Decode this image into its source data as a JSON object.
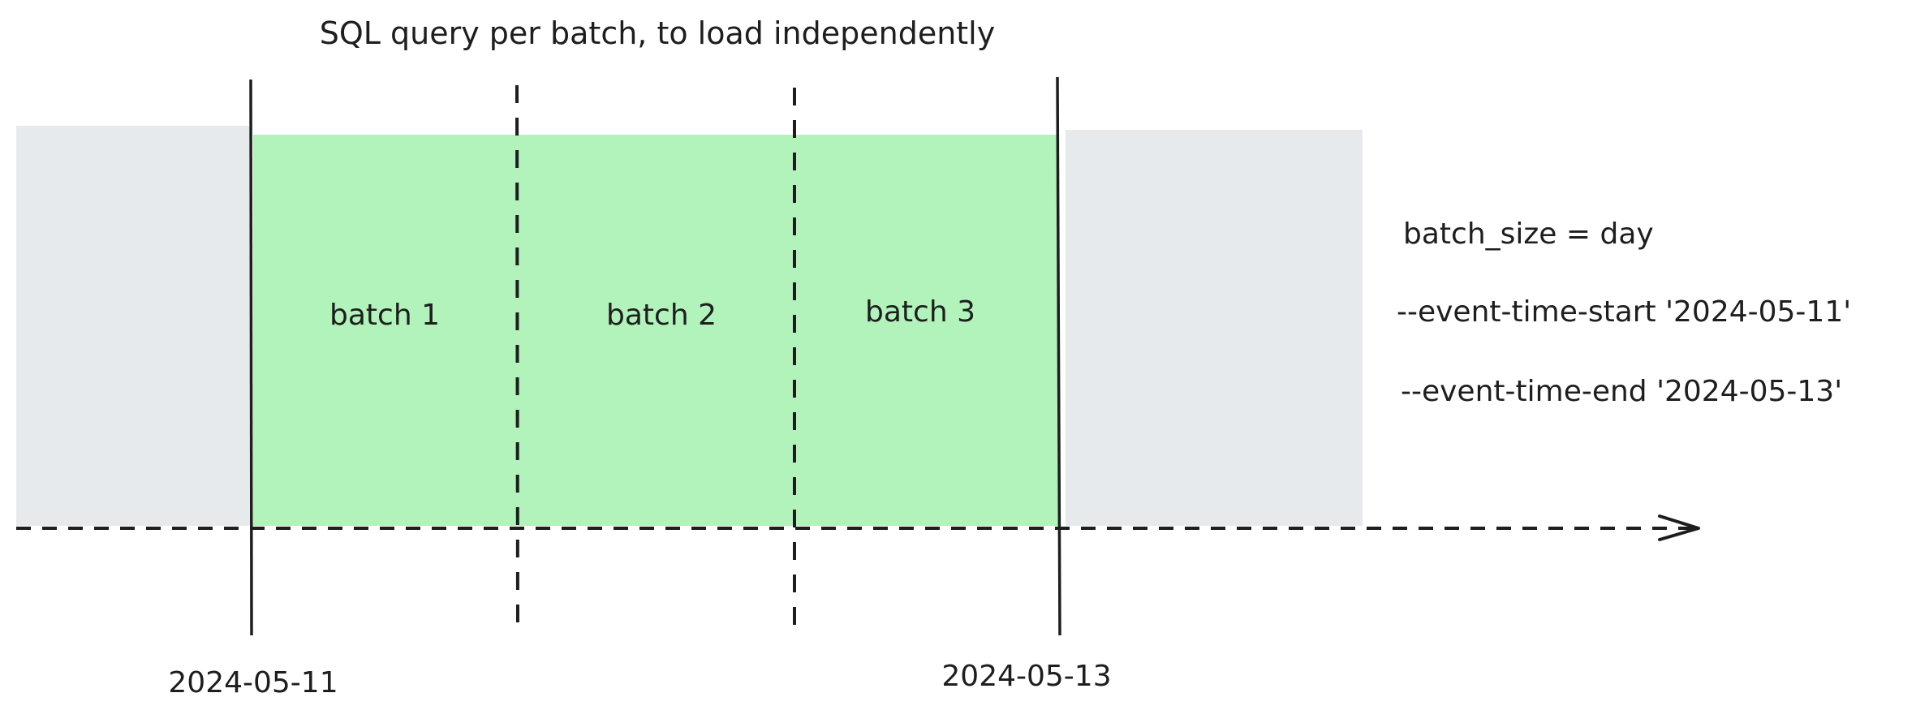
{
  "title": "SQL query per batch, to load independently",
  "batches": [
    {
      "label": "batch 1"
    },
    {
      "label": "batch 2"
    },
    {
      "label": "batch 3"
    }
  ],
  "dates": {
    "start": "2024-05-11",
    "end": "2024-05-13"
  },
  "config": {
    "batch_size": "batch_size = day",
    "event_time_start": "--event-time-start '2024-05-11'",
    "event_time_end": "--event-time-end '2024-05-13'"
  },
  "colors": {
    "included_range": "#b2f2bb",
    "excluded_range": "#e7eaed",
    "stroke": "#1e1e1e"
  }
}
